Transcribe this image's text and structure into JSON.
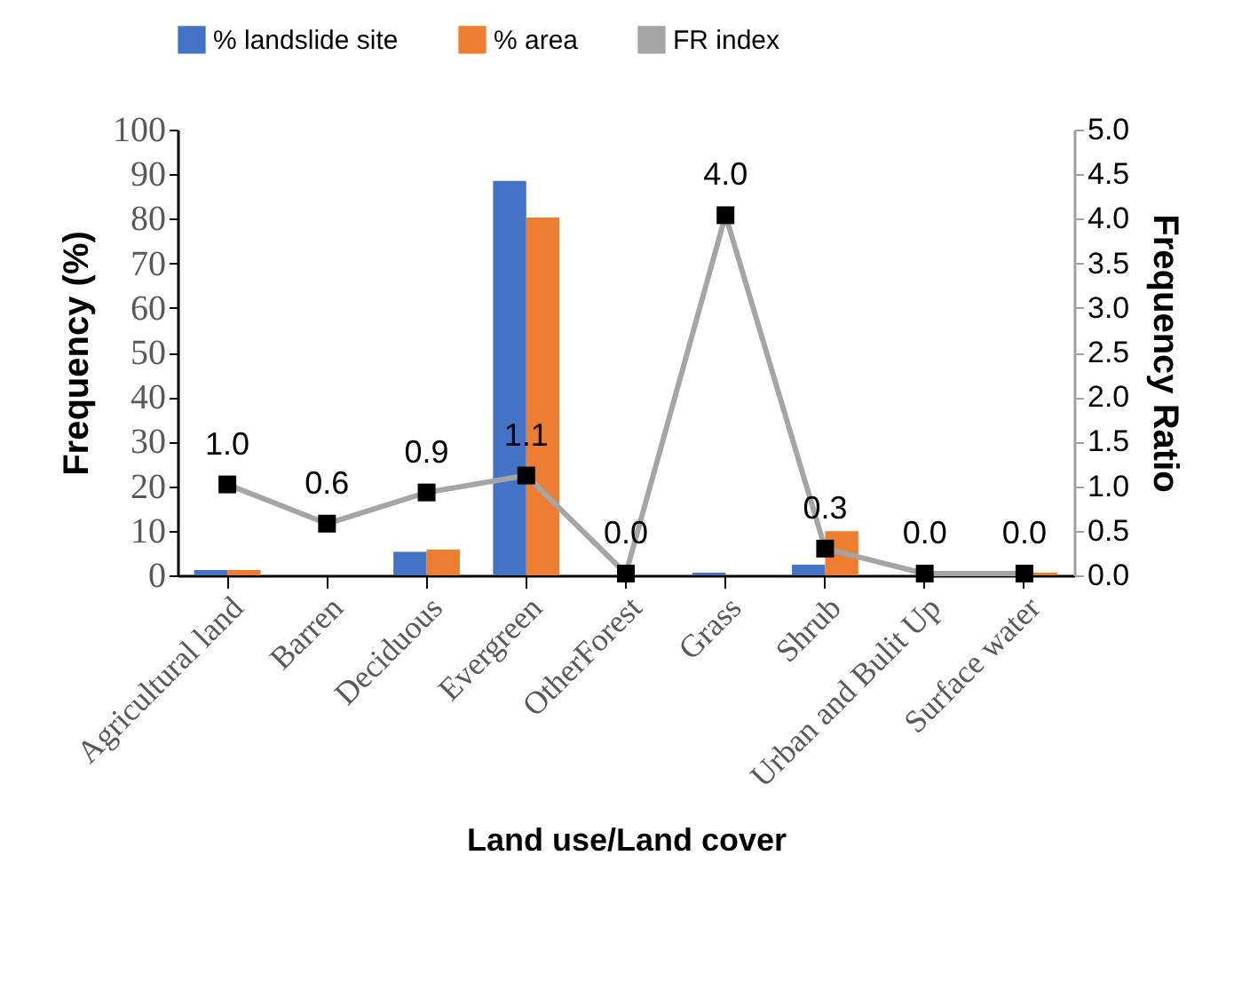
{
  "chart_data": {
    "type": "bar",
    "xlabel": "Land use/Land cover",
    "ylabel": "Frequency (%)",
    "y2label": "Frequency Ratio",
    "categories": [
      "Agricultural land",
      "Barren",
      "Deciduous",
      "Evergreen",
      "OtherForest",
      "Grass",
      "Shrub",
      "Urban and Bulit Up",
      "Surface water"
    ],
    "series": [
      {
        "name": "% landslide site",
        "color": "#4472c4",
        "values": [
          1.2,
          0,
          5.3,
          88.5,
          0,
          0.6,
          2.4,
          0,
          0
        ]
      },
      {
        "name": "% area",
        "color": "#ed7d31",
        "values": [
          1.2,
          0,
          5.8,
          80.3,
          0,
          0,
          9.9,
          0,
          0.6
        ]
      },
      {
        "name": "FR index",
        "type": "line",
        "axis": "y2",
        "color": "#a5a5a5",
        "marker": "square",
        "values": [
          1.02,
          0.58,
          0.93,
          1.12,
          0.02,
          4.04,
          0.3,
          0.02,
          0.02
        ],
        "value_labels": [
          "1.0",
          "0.6",
          "0.9",
          "1.1",
          "0.0",
          "4.0",
          "0.3",
          "0.0",
          "0.0"
        ]
      }
    ],
    "ylim": [
      0,
      100
    ],
    "yticks": [
      0,
      10,
      20,
      30,
      40,
      50,
      60,
      70,
      80,
      90,
      100
    ],
    "y2lim": [
      0,
      5
    ],
    "y2ticks": [
      {
        "value": 0,
        "label": "0.0"
      },
      {
        "value": 0.5,
        "label": "0.5"
      },
      {
        "value": 1,
        "label": "1.0"
      },
      {
        "value": 1.5,
        "label": "1.5"
      },
      {
        "value": 2,
        "label": "2.0"
      },
      {
        "value": 2.5,
        "label": "2.5"
      },
      {
        "value": 3,
        "label": "3.0"
      },
      {
        "value": 3.5,
        "label": "3.5"
      },
      {
        "value": 4,
        "label": "4.0"
      },
      {
        "value": 4.5,
        "label": "4.5"
      },
      {
        "value": 5,
        "label": "5.0"
      }
    ],
    "grid": false,
    "legend": "top"
  }
}
